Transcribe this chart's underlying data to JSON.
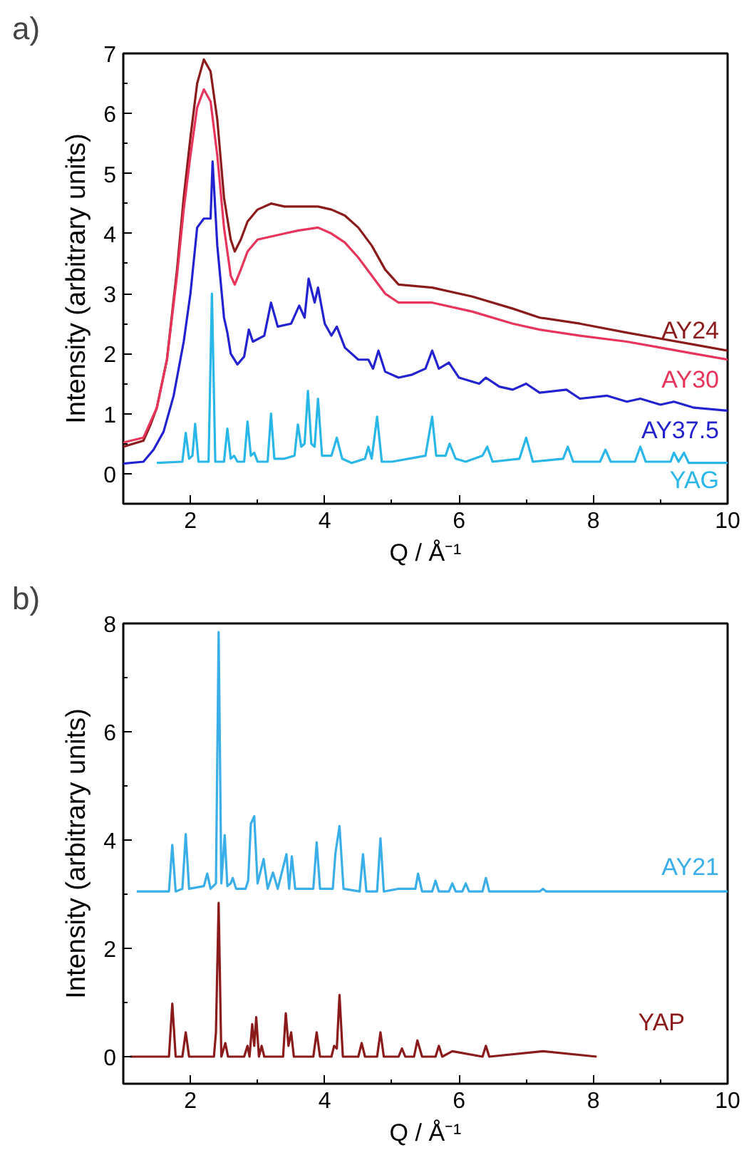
{
  "chart_data": [
    {
      "type": "line",
      "annotations": [
        "a)"
      ],
      "xlabel": "Q / Å⁻¹",
      "ylabel": "Intensity (arbitrary units)",
      "xlim": [
        1,
        10
      ],
      "ylim": [
        -0.5,
        7
      ],
      "xticks": [
        2,
        4,
        6,
        8,
        10
      ],
      "yticks": [
        0,
        1,
        2,
        3,
        4,
        5,
        6,
        7
      ],
      "grid": false,
      "marker": "none",
      "line_style": "solid",
      "series": [
        {
          "name": "AY24",
          "color": "#8b1a1a",
          "x": [
            1.0,
            1.3,
            1.4,
            1.5,
            1.65,
            1.8,
            1.9,
            2.0,
            2.1,
            2.2,
            2.3,
            2.4,
            2.5,
            2.6,
            2.66,
            2.75,
            2.85,
            3.0,
            3.2,
            3.4,
            3.6,
            3.9,
            4.1,
            4.3,
            4.5,
            4.7,
            4.9,
            5.1,
            5.6,
            6.2,
            6.8,
            7.2,
            7.8,
            8.5,
            9.0,
            9.5,
            10.0
          ],
          "values": [
            0.45,
            0.55,
            0.8,
            1.1,
            1.9,
            3.4,
            4.6,
            5.6,
            6.5,
            6.9,
            6.7,
            5.9,
            4.6,
            3.9,
            3.7,
            3.9,
            4.2,
            4.4,
            4.5,
            4.45,
            4.45,
            4.45,
            4.4,
            4.3,
            4.1,
            3.8,
            3.4,
            3.15,
            3.1,
            2.95,
            2.75,
            2.6,
            2.5,
            2.35,
            2.25,
            2.15,
            2.05
          ]
        },
        {
          "name": "AY30",
          "color": "#e8335a",
          "x": [
            1.0,
            1.3,
            1.4,
            1.5,
            1.65,
            1.8,
            1.9,
            2.0,
            2.1,
            2.2,
            2.3,
            2.4,
            2.5,
            2.6,
            2.66,
            2.75,
            2.85,
            3.0,
            3.2,
            3.4,
            3.6,
            3.9,
            4.1,
            4.3,
            4.5,
            4.7,
            4.9,
            5.1,
            5.6,
            6.2,
            6.8,
            7.2,
            7.8,
            8.5,
            9.0,
            9.5,
            10.0
          ],
          "values": [
            0.52,
            0.6,
            0.85,
            1.1,
            1.9,
            3.3,
            4.4,
            5.3,
            6.1,
            6.4,
            6.2,
            5.3,
            4.1,
            3.3,
            3.15,
            3.4,
            3.7,
            3.9,
            3.95,
            4.0,
            4.05,
            4.1,
            4.0,
            3.85,
            3.6,
            3.3,
            3.0,
            2.85,
            2.85,
            2.7,
            2.5,
            2.4,
            2.3,
            2.2,
            2.1,
            2.0,
            1.9
          ]
        },
        {
          "name": "AY37.5",
          "color": "#2222d0",
          "x": [
            1.0,
            1.3,
            1.45,
            1.6,
            1.75,
            1.9,
            2.0,
            2.1,
            2.2,
            2.3,
            2.33,
            2.4,
            2.5,
            2.55,
            2.6,
            2.7,
            2.8,
            2.87,
            2.93,
            3.1,
            3.2,
            3.3,
            3.5,
            3.62,
            3.7,
            3.76,
            3.85,
            3.9,
            4.0,
            4.1,
            4.18,
            4.3,
            4.5,
            4.65,
            4.72,
            4.8,
            4.9,
            5.1,
            5.3,
            5.5,
            5.6,
            5.7,
            5.85,
            6.0,
            6.3,
            6.4,
            6.6,
            6.8,
            7.0,
            7.2,
            7.6,
            7.8,
            8.2,
            8.5,
            8.7,
            9.0,
            9.2,
            9.5,
            10.0
          ],
          "values": [
            0.17,
            0.2,
            0.4,
            0.7,
            1.3,
            2.2,
            3.0,
            4.1,
            4.25,
            4.25,
            5.2,
            3.8,
            2.6,
            2.35,
            2.0,
            1.82,
            1.95,
            2.4,
            2.2,
            2.3,
            2.85,
            2.45,
            2.5,
            2.8,
            2.6,
            3.25,
            2.85,
            3.1,
            2.5,
            2.3,
            2.45,
            2.1,
            1.9,
            1.9,
            1.75,
            2.05,
            1.7,
            1.6,
            1.65,
            1.75,
            2.05,
            1.75,
            1.85,
            1.6,
            1.5,
            1.6,
            1.45,
            1.4,
            1.5,
            1.35,
            1.4,
            1.25,
            1.3,
            1.2,
            1.25,
            1.15,
            1.2,
            1.1,
            1.05
          ]
        },
        {
          "name": "YAG",
          "color": "#29b6e8",
          "x": [
            1.5,
            1.88,
            1.93,
            1.98,
            2.03,
            2.07,
            2.12,
            2.27,
            2.32,
            2.37,
            2.5,
            2.55,
            2.6,
            2.65,
            2.7,
            2.8,
            2.85,
            2.9,
            2.95,
            3.0,
            3.15,
            3.2,
            3.25,
            3.4,
            3.55,
            3.6,
            3.65,
            3.7,
            3.75,
            3.8,
            3.85,
            3.9,
            3.96,
            4.1,
            4.18,
            4.26,
            4.4,
            4.6,
            4.65,
            4.7,
            4.78,
            4.85,
            5.0,
            5.5,
            5.6,
            5.66,
            5.8,
            5.86,
            5.95,
            6.1,
            6.35,
            6.42,
            6.5,
            6.9,
            7.0,
            7.1,
            7.55,
            7.62,
            7.7,
            8.1,
            8.18,
            8.26,
            8.62,
            8.7,
            8.78,
            9.15,
            9.2,
            9.27,
            9.35,
            9.42,
            10.0
          ],
          "values": [
            0.18,
            0.2,
            0.68,
            0.25,
            0.3,
            0.83,
            0.2,
            0.2,
            3.0,
            0.2,
            0.2,
            0.75,
            0.25,
            0.3,
            0.2,
            0.2,
            0.87,
            0.3,
            0.35,
            0.2,
            0.2,
            1.0,
            0.25,
            0.25,
            0.3,
            0.82,
            0.45,
            0.5,
            1.38,
            0.5,
            0.45,
            1.25,
            0.3,
            0.3,
            0.6,
            0.25,
            0.18,
            0.25,
            0.45,
            0.25,
            0.95,
            0.2,
            0.2,
            0.3,
            0.95,
            0.3,
            0.3,
            0.5,
            0.25,
            0.2,
            0.3,
            0.45,
            0.2,
            0.25,
            0.6,
            0.2,
            0.25,
            0.45,
            0.2,
            0.2,
            0.4,
            0.2,
            0.2,
            0.45,
            0.2,
            0.2,
            0.35,
            0.2,
            0.35,
            0.18,
            0.18
          ]
        }
      ]
    },
    {
      "type": "line",
      "annotations": [
        "b)"
      ],
      "xlabel": "Q / Å⁻¹",
      "ylabel": "Intensity (arbitrary units)",
      "xlim": [
        1,
        10
      ],
      "ylim": [
        -0.5,
        8
      ],
      "xticks": [
        2,
        4,
        6,
        8,
        10
      ],
      "yticks": [
        0,
        2,
        4,
        6,
        8
      ],
      "grid": false,
      "marker": "none",
      "line_style": "solid",
      "series": [
        {
          "name": "AY21",
          "color": "#3aaee8",
          "x": [
            1.2,
            1.68,
            1.73,
            1.78,
            1.88,
            1.93,
            1.98,
            2.2,
            2.25,
            2.3,
            2.38,
            2.42,
            2.46,
            2.51,
            2.55,
            2.6,
            2.63,
            2.68,
            2.82,
            2.86,
            2.9,
            2.95,
            3.0,
            3.09,
            3.15,
            3.23,
            3.3,
            3.43,
            3.47,
            3.51,
            3.56,
            3.83,
            3.88,
            3.93,
            4.12,
            4.16,
            4.22,
            4.28,
            4.52,
            4.57,
            4.62,
            4.78,
            4.83,
            4.88,
            5.1,
            5.35,
            5.39,
            5.45,
            5.6,
            5.65,
            5.7,
            5.85,
            5.9,
            5.95,
            6.05,
            6.1,
            6.15,
            6.35,
            6.4,
            6.45,
            7.2,
            7.25,
            7.3,
            10.0
          ],
          "values": [
            3.05,
            3.05,
            3.91,
            3.05,
            3.1,
            4.11,
            3.1,
            3.15,
            3.38,
            3.1,
            3.2,
            7.84,
            3.2,
            4.09,
            3.15,
            3.2,
            3.3,
            3.1,
            3.1,
            3.25,
            4.3,
            4.44,
            3.2,
            3.65,
            3.1,
            3.4,
            3.1,
            3.74,
            3.1,
            3.7,
            3.1,
            3.1,
            3.96,
            3.1,
            3.1,
            3.76,
            4.26,
            3.1,
            3.05,
            3.74,
            3.05,
            3.05,
            4.03,
            3.05,
            3.1,
            3.1,
            3.38,
            3.05,
            3.05,
            3.25,
            3.05,
            3.05,
            3.2,
            3.05,
            3.05,
            3.2,
            3.05,
            3.05,
            3.3,
            3.05,
            3.05,
            3.1,
            3.05,
            3.05
          ]
        },
        {
          "name": "YAP",
          "color": "#8b1a1a",
          "x": [
            1.1,
            1.68,
            1.73,
            1.78,
            1.88,
            1.93,
            1.98,
            2.35,
            2.38,
            2.42,
            2.46,
            2.52,
            2.56,
            2.8,
            2.85,
            2.88,
            2.92,
            2.95,
            2.98,
            3.02,
            3.06,
            3.1,
            3.38,
            3.42,
            3.46,
            3.5,
            3.54,
            3.83,
            3.88,
            3.93,
            4.1,
            4.14,
            4.18,
            4.22,
            4.27,
            4.5,
            4.55,
            4.6,
            4.78,
            4.83,
            4.88,
            5.1,
            5.15,
            5.2,
            5.33,
            5.38,
            5.45,
            5.65,
            5.7,
            5.75,
            5.9,
            6.35,
            6.4,
            6.45,
            7.25,
            8.05
          ],
          "values": [
            0,
            0,
            0.98,
            0,
            0,
            0.45,
            0,
            0,
            0.45,
            2.84,
            0,
            0.25,
            0,
            0,
            0.2,
            0,
            0.6,
            0.2,
            0.73,
            0,
            0.2,
            0,
            0,
            0.8,
            0.2,
            0.45,
            0,
            0,
            0.45,
            0,
            0,
            0.2,
            0.15,
            1.14,
            0,
            0,
            0.25,
            0,
            0,
            0.45,
            0,
            0,
            0.15,
            0,
            0,
            0.3,
            0,
            0,
            0.2,
            0,
            0.1,
            0,
            0.2,
            0,
            0.1,
            0
          ]
        }
      ]
    }
  ]
}
